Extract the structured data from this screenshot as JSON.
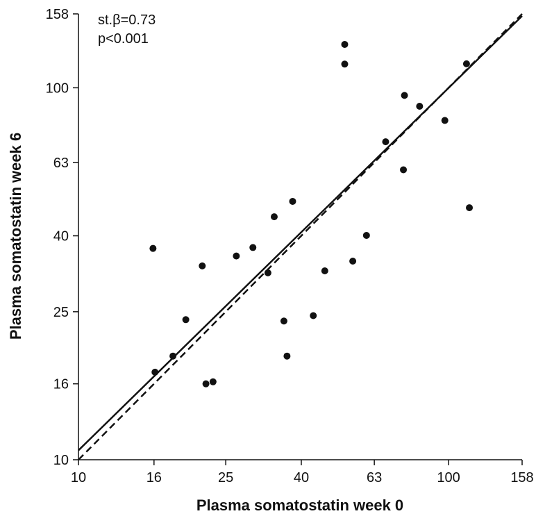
{
  "chart_data": {
    "type": "scatter",
    "title": "",
    "xlabel": "Plasma somatostatin week 0",
    "ylabel": "Plasma somatostatin week 6",
    "scale": "log",
    "xlim": [
      10,
      158
    ],
    "ylim": [
      10,
      158
    ],
    "x_ticks": [
      10,
      16,
      25,
      40,
      63,
      100,
      158
    ],
    "x_tick_labels": [
      "10",
      "16",
      "25",
      "40",
      "63",
      "100",
      "158"
    ],
    "y_ticks": [
      10,
      16,
      25,
      40,
      63,
      100,
      158
    ],
    "y_tick_labels": [
      "10",
      "16",
      "25",
      "40",
      "63",
      "100",
      "158"
    ],
    "grid": false,
    "legend": "none",
    "annotations": [
      "st.β=0.73",
      "p<0.001"
    ],
    "points": [
      {
        "x": 15.9,
        "y": 37.0
      },
      {
        "x": 16.1,
        "y": 17.2
      },
      {
        "x": 18.0,
        "y": 19.0
      },
      {
        "x": 19.5,
        "y": 23.8
      },
      {
        "x": 21.6,
        "y": 33.2
      },
      {
        "x": 22.1,
        "y": 16.0
      },
      {
        "x": 23.1,
        "y": 16.2
      },
      {
        "x": 26.7,
        "y": 35.3
      },
      {
        "x": 29.6,
        "y": 37.2
      },
      {
        "x": 32.5,
        "y": 31.8
      },
      {
        "x": 33.8,
        "y": 45.0
      },
      {
        "x": 35.9,
        "y": 23.6
      },
      {
        "x": 36.6,
        "y": 19.0
      },
      {
        "x": 37.9,
        "y": 49.5
      },
      {
        "x": 43.1,
        "y": 24.4
      },
      {
        "x": 46.3,
        "y": 32.2
      },
      {
        "x": 52.4,
        "y": 130.8
      },
      {
        "x": 52.4,
        "y": 115.8
      },
      {
        "x": 55.1,
        "y": 34.2
      },
      {
        "x": 60.0,
        "y": 40.1
      },
      {
        "x": 67.6,
        "y": 71.6
      },
      {
        "x": 75.5,
        "y": 60.2
      },
      {
        "x": 76.0,
        "y": 95.4
      },
      {
        "x": 83.5,
        "y": 89.2
      },
      {
        "x": 97.7,
        "y": 81.7
      },
      {
        "x": 111.8,
        "y": 116.0
      },
      {
        "x": 113.8,
        "y": 47.6
      }
    ],
    "lines": [
      {
        "style": "solid",
        "x": [
          10,
          158
        ],
        "y": [
          10.6,
          156
        ]
      },
      {
        "style": "dashed",
        "x": [
          10,
          158
        ],
        "y": [
          10,
          158
        ]
      }
    ]
  }
}
